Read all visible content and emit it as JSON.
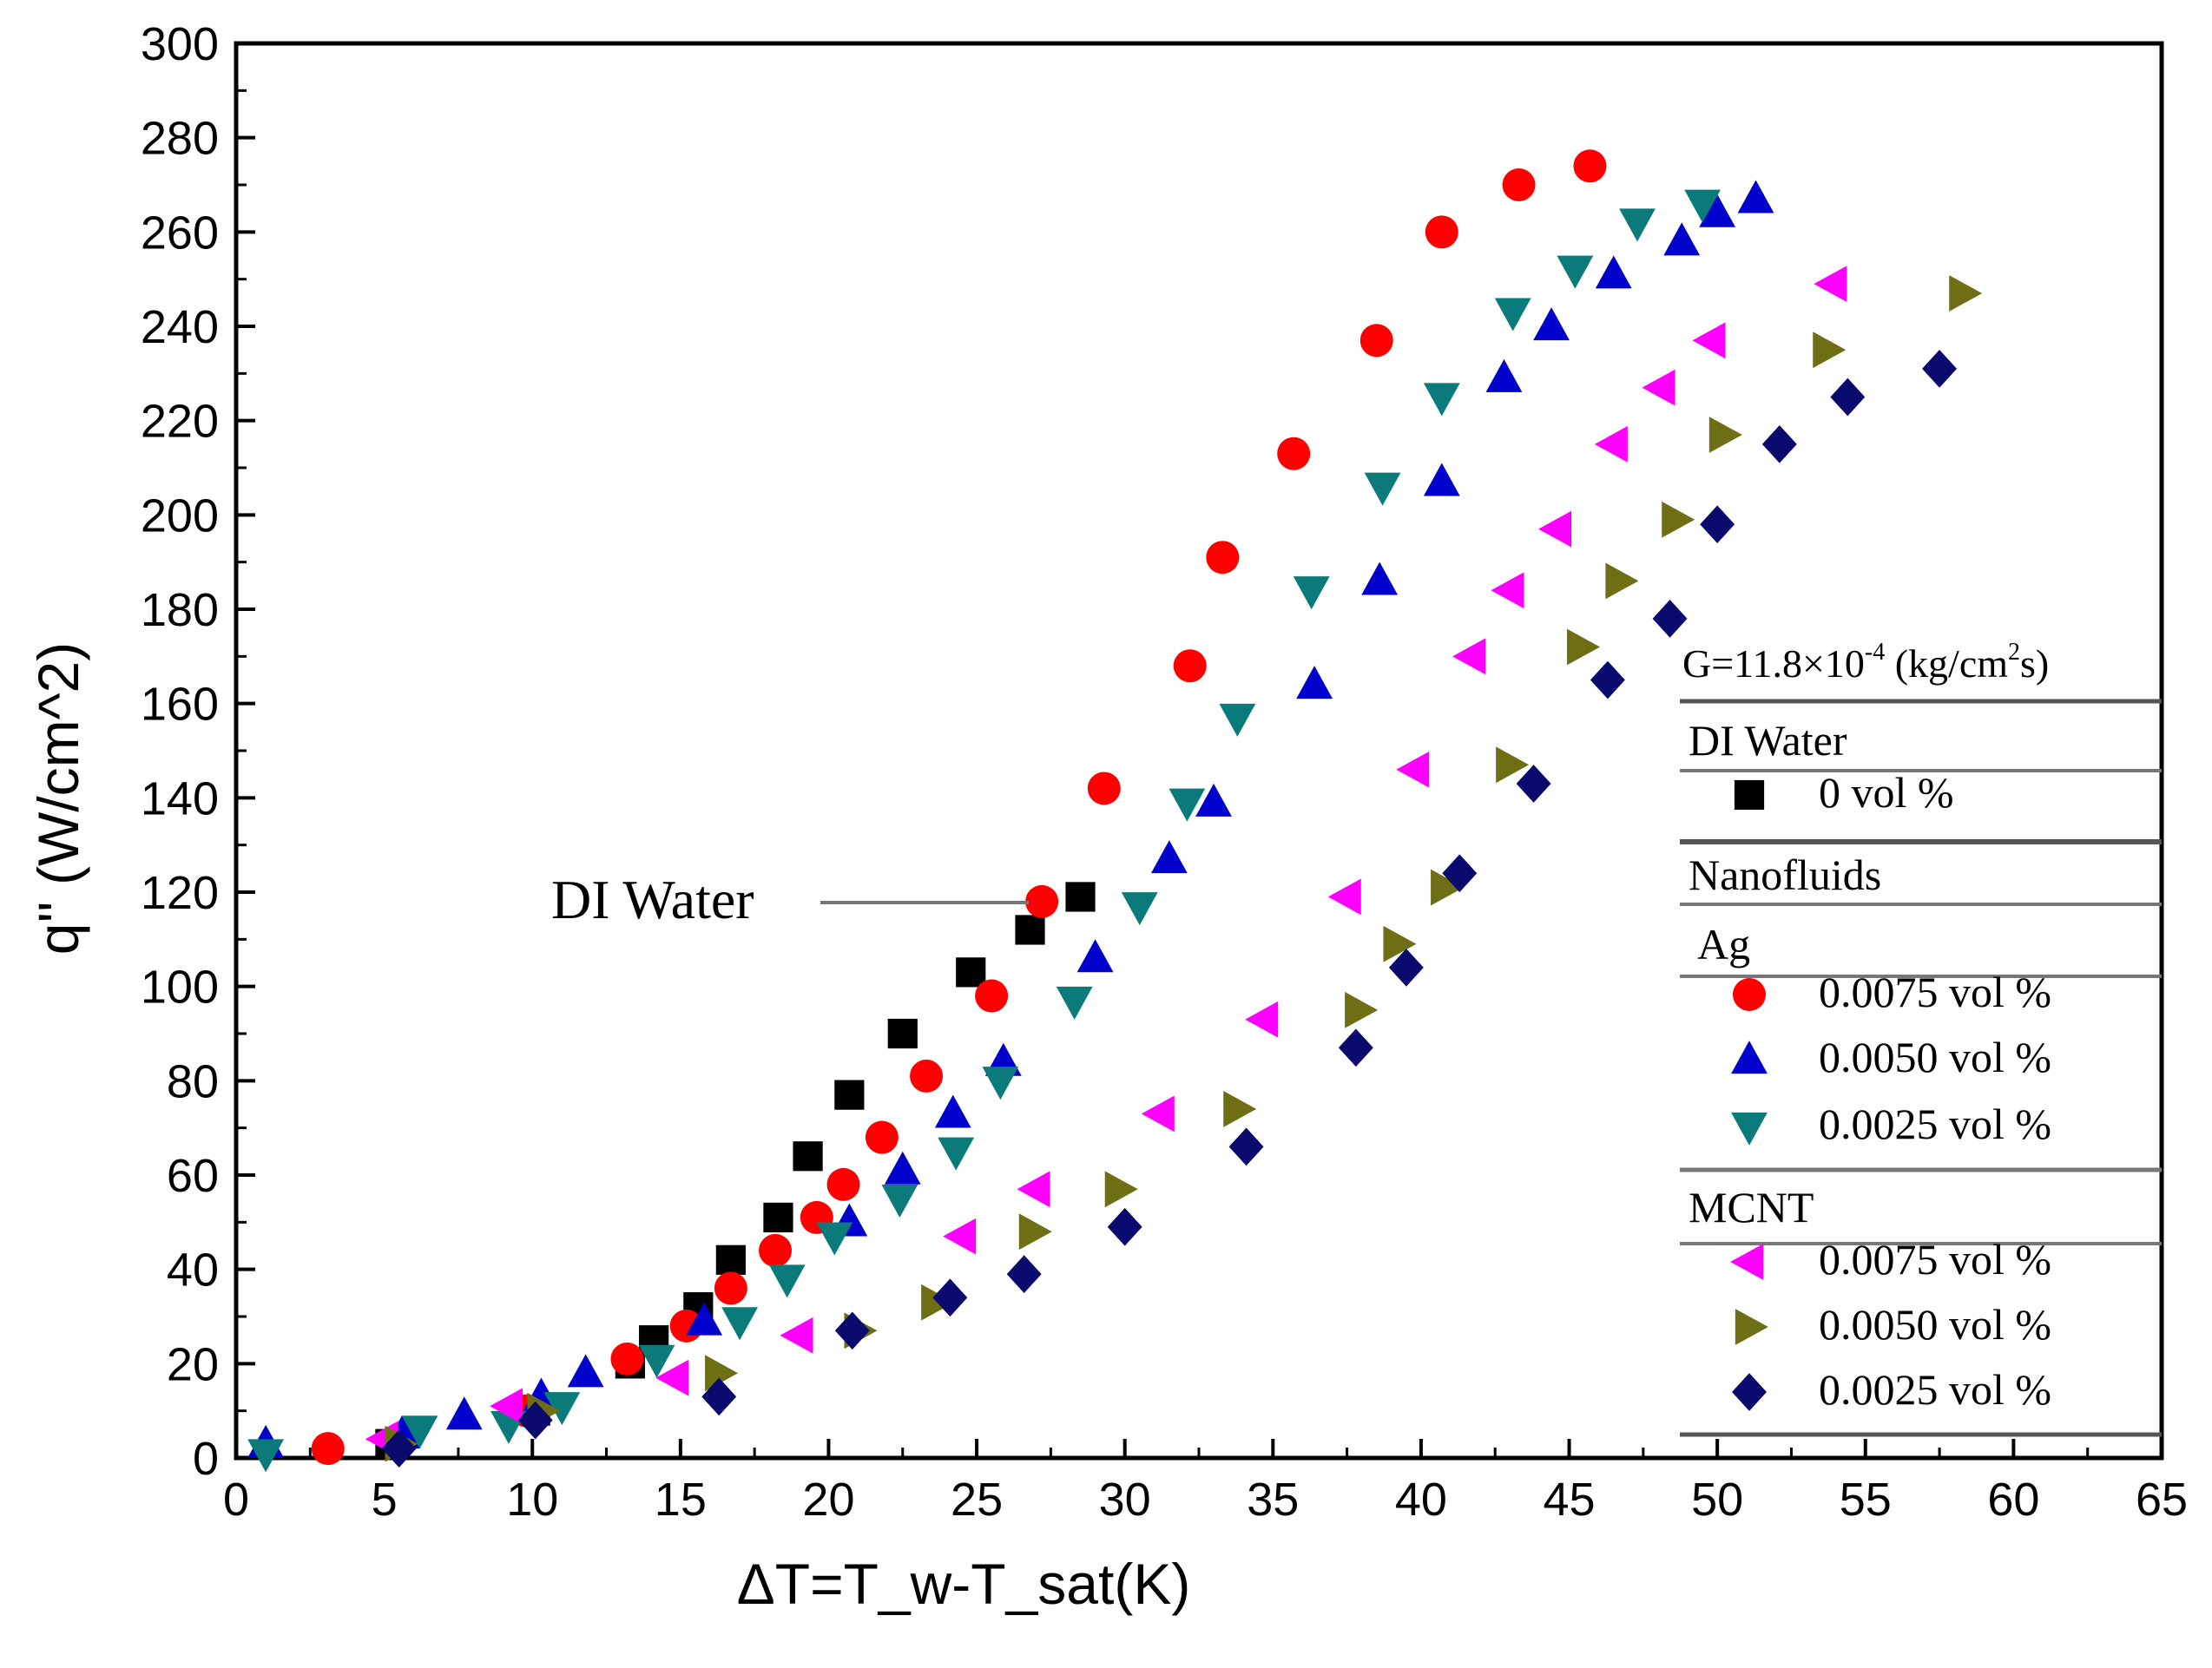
{
  "chart_data": {
    "type": "scatter",
    "title": "",
    "xlabel": "ΔT=T_w-T_sat(K)",
    "ylabel": "q'' (W/cm^2)",
    "xlim": [
      0,
      65
    ],
    "ylim": [
      0,
      300
    ],
    "x_ticks": [
      0,
      5,
      10,
      15,
      20,
      25,
      30,
      35,
      40,
      45,
      50,
      55,
      60,
      65
    ],
    "y_ticks": [
      0,
      20,
      40,
      60,
      80,
      100,
      120,
      140,
      160,
      180,
      200,
      220,
      240,
      260,
      280,
      300
    ],
    "annotation": {
      "text": "DI Water",
      "x": 27.5,
      "y": 118
    },
    "legend": {
      "position": "right",
      "header": "G=11.8×10",
      "header_exp": "-4",
      "header_tail": " (kg/cm",
      "header_exp2": "2",
      "header_end": "s)",
      "groups": [
        "DI Water",
        "Nanofluids",
        "Ag",
        "MCNT"
      ]
    },
    "series": [
      {
        "name": "0 vol %",
        "group": "DI Water",
        "marker": "square",
        "color": "#000000",
        "x": [
          5.2,
          10.1,
          13.3,
          14.1,
          15.6,
          16.7,
          18.3,
          19.3,
          20.7,
          22.5,
          24.8,
          26.8,
          28.5
        ],
        "y": [
          3,
          10,
          20,
          25,
          32,
          42,
          51,
          64,
          77,
          90,
          103,
          112,
          119
        ]
      },
      {
        "name": "0.0075 vol %",
        "group": "Ag",
        "marker": "circle",
        "color": "#ff0000",
        "x": [
          3.1,
          9.8,
          13.2,
          15.2,
          16.7,
          18.2,
          19.6,
          20.5,
          21.8,
          23.3,
          25.5,
          27.2,
          29.3,
          32.2,
          33.3,
          35.7,
          38.5,
          40.7,
          43.3,
          45.7
        ],
        "y": [
          2,
          10,
          21,
          28,
          36,
          44,
          51,
          58,
          68,
          81,
          98,
          118,
          142,
          168,
          191,
          213,
          237,
          260,
          270,
          274
        ]
      },
      {
        "name": "0.0050 vol %",
        "group": "Ag",
        "marker": "triangle-up",
        "color": "#0000cc",
        "x": [
          1.0,
          5.6,
          7.7,
          10.3,
          11.8,
          15.8,
          20.7,
          22.5,
          24.2,
          25.9,
          29.0,
          31.5,
          33.0,
          36.4,
          38.6,
          40.7,
          42.8,
          44.4,
          46.5,
          48.8,
          50.0,
          51.3
        ],
        "y": [
          3,
          5,
          9,
          13,
          18,
          29,
          50,
          61,
          73,
          84,
          106,
          127,
          139,
          164,
          186,
          207,
          229,
          240,
          251,
          258,
          264,
          267
        ]
      },
      {
        "name": "0.0025 vol %",
        "group": "Ag",
        "marker": "triangle-down",
        "color": "#0a7a7a",
        "x": [
          1.0,
          6.2,
          9.2,
          11.0,
          14.2,
          17.0,
          18.6,
          20.2,
          22.4,
          24.3,
          25.8,
          28.3,
          30.5,
          32.1,
          33.8,
          36.3,
          38.7,
          40.7,
          43.1,
          45.2,
          47.3,
          49.5
        ],
        "y": [
          1,
          6,
          7,
          11,
          21,
          29,
          38,
          47,
          55,
          65,
          80,
          97,
          117,
          139,
          157,
          184,
          206,
          225,
          243,
          252,
          262,
          266
        ]
      },
      {
        "name": "0.0075 vol %",
        "group": "MCNT",
        "marker": "triangle-left",
        "color": "#ff00ff",
        "x": [
          5.0,
          9.2,
          14.8,
          19.0,
          24.5,
          27.0,
          31.2,
          34.7,
          37.5,
          39.8,
          41.7,
          43.0,
          44.6,
          46.5,
          48.1,
          49.8,
          53.9
        ],
        "y": [
          4,
          11,
          17,
          26,
          47,
          57,
          73,
          93,
          119,
          146,
          170,
          184,
          197,
          215,
          227,
          237,
          249
        ]
      },
      {
        "name": "0.0050 vol %",
        "group": "MCNT",
        "marker": "triangle-right",
        "color": "#6e6e14",
        "x": [
          5.5,
          10.3,
          16.3,
          21.0,
          23.6,
          26.9,
          29.8,
          33.8,
          37.9,
          39.2,
          40.8,
          43.0,
          45.4,
          46.7,
          48.6,
          50.2,
          53.7,
          58.3
        ],
        "y": [
          3,
          10,
          18,
          27,
          33,
          48,
          57,
          74,
          95,
          109,
          121,
          147,
          172,
          186,
          199,
          217,
          235,
          247
        ]
      },
      {
        "name": "0.0025 vol %",
        "group": "MCNT",
        "marker": "diamond",
        "color": "#0a0a6e",
        "x": [
          5.5,
          10.1,
          16.3,
          20.8,
          24.1,
          26.6,
          30.0,
          34.1,
          37.8,
          39.5,
          41.3,
          43.8,
          46.3,
          48.4,
          50.0,
          52.1,
          54.4,
          57.5
        ],
        "y": [
          2,
          8,
          13,
          27,
          34,
          39,
          49,
          66,
          87,
          104,
          124,
          143,
          165,
          178,
          198,
          215,
          225,
          231
        ]
      }
    ]
  }
}
